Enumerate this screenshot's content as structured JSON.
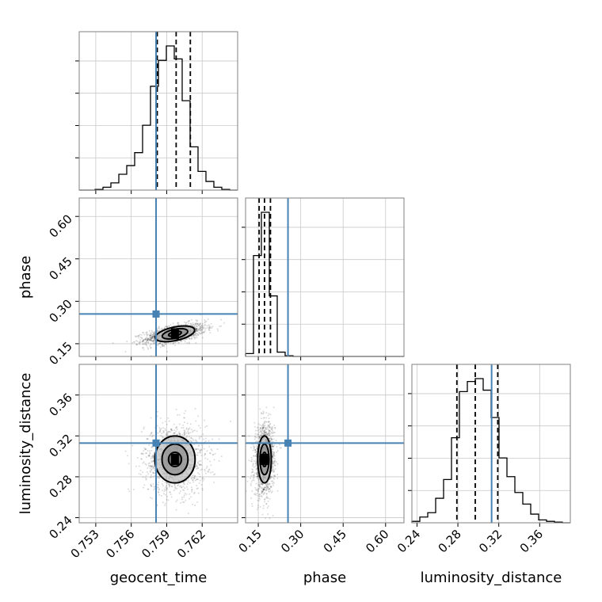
{
  "chart_data": {
    "type": "corner",
    "parameters": [
      "geocent_time",
      "phase",
      "luminosity_distance"
    ],
    "axis_labels": [
      "geocent_time",
      "phase",
      "luminosity_distance"
    ],
    "ranges": {
      "geocent_time": [
        0.7516,
        0.765
      ],
      "phase": [
        0.105,
        0.665
      ],
      "luminosity_distance": [
        0.235,
        0.39
      ]
    },
    "ticks": {
      "geocent_time": {
        "values": [
          0.753,
          0.756,
          0.759,
          0.762
        ],
        "labels": [
          "0.753",
          "0.756",
          "0.759",
          "0.762"
        ]
      },
      "phase": {
        "values": [
          0.15,
          0.3,
          0.45,
          0.6
        ],
        "labels": [
          "0.15",
          "0.30",
          "0.45",
          "0.60"
        ]
      },
      "luminosity_distance": {
        "values": [
          0.24,
          0.28,
          0.32,
          0.36
        ],
        "labels": [
          "0.24",
          "0.28",
          "0.32",
          "0.36"
        ]
      }
    },
    "truths": {
      "geocent_time": 0.7581,
      "phase": 0.255,
      "luminosity_distance": 0.313
    },
    "quantiles": {
      "geocent_time": [
        0.7582,
        0.7598,
        0.761
      ],
      "phase": [
        0.153,
        0.172,
        0.193
      ],
      "luminosity_distance": [
        0.279,
        0.297,
        0.319
      ]
    },
    "histograms": {
      "geocent_time": {
        "edges": [
          0.7516,
          0.75227,
          0.75294,
          0.75361,
          0.75428,
          0.75495,
          0.75562,
          0.75629,
          0.75696,
          0.75763,
          0.7583,
          0.75897,
          0.75964,
          0.76031,
          0.76098,
          0.76165,
          0.76232,
          0.76299,
          0.76366,
          0.76433,
          0.765
        ],
        "counts": [
          0,
          0,
          0.005,
          0.02,
          0.05,
          0.11,
          0.17,
          0.26,
          0.45,
          0.72,
          0.9,
          1.0,
          0.91,
          0.62,
          0.3,
          0.13,
          0.06,
          0.02,
          0.005,
          0
        ]
      },
      "phase": {
        "edges": [
          0.105,
          0.133,
          0.161,
          0.189,
          0.217,
          0.245,
          0.273,
          0.301,
          0.329,
          0.357,
          0.385,
          0.413,
          0.441,
          0.469,
          0.497,
          0.525,
          0.553,
          0.581,
          0.609,
          0.637,
          0.665
        ],
        "counts": [
          0.02,
          0.7,
          1.0,
          0.42,
          0.03,
          0.005,
          0,
          0,
          0,
          0,
          0,
          0,
          0,
          0,
          0,
          0,
          0,
          0,
          0,
          0
        ]
      },
      "luminosity_distance": {
        "edges": [
          0.235,
          0.24275,
          0.2505,
          0.25825,
          0.266,
          0.27375,
          0.2815,
          0.28925,
          0.297,
          0.30475,
          0.3125,
          0.32025,
          0.328,
          0.33575,
          0.3435,
          0.35125,
          0.359,
          0.36675,
          0.3745,
          0.38225,
          0.39
        ],
        "counts": [
          0.01,
          0.04,
          0.07,
          0.17,
          0.3,
          0.59,
          0.91,
          0.98,
          1.0,
          0.92,
          0.73,
          0.45,
          0.32,
          0.21,
          0.13,
          0.06,
          0.02,
          0.01,
          0.005,
          0
        ]
      }
    },
    "joint": {
      "phase_vs_geocent_time": {
        "center": [
          0.7597,
          0.185
        ],
        "sigma": [
          0.0013,
          0.018
        ],
        "rho": 0.55,
        "contours": [
          [
            0.00055,
            0.008
          ],
          [
            0.0011,
            0.016
          ],
          [
            0.0017,
            0.024
          ]
        ]
      },
      "luminosity_distance_vs_geocent_time": {
        "center": [
          0.7597,
          0.297
        ],
        "sigma": [
          0.0013,
          0.017
        ],
        "rho": 0.0,
        "contours": [
          [
            0.00055,
            0.007
          ],
          [
            0.0011,
            0.015
          ],
          [
            0.0017,
            0.023
          ]
        ]
      },
      "luminosity_distance_vs_phase": {
        "center": [
          0.172,
          0.297
        ],
        "sigma": [
          0.018,
          0.017
        ],
        "rho": 0.1,
        "contours": [
          [
            0.008,
            0.007
          ],
          [
            0.016,
            0.015
          ],
          [
            0.024,
            0.023
          ]
        ]
      }
    },
    "grid": true,
    "colors": {
      "truth": "#4682b4",
      "hist": "#000000",
      "contour": "#000000",
      "samples": "#000000",
      "grid": "#c8c8c8"
    }
  }
}
